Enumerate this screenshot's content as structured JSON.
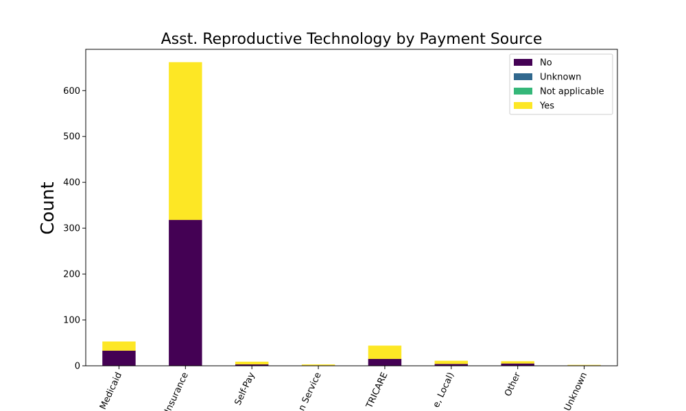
{
  "chart_data": {
    "type": "bar",
    "stacked": true,
    "title": "Asst. Reproductive Technology by Payment Source",
    "xlabel": "",
    "ylabel": "Count",
    "ylim": [
      0,
      690
    ],
    "yticks": [
      0,
      100,
      200,
      300,
      400,
      500,
      600
    ],
    "categories": [
      "Medicaid",
      "Insurance",
      "Self-Pay",
      "n Service",
      "TRICARE",
      "e, Local)",
      "Other",
      "Unknown"
    ],
    "series": [
      {
        "name": "No",
        "color": "#440154",
        "values": [
          33,
          318,
          3,
          1,
          15,
          4,
          5,
          1
        ]
      },
      {
        "name": "Unknown",
        "color": "#31688e",
        "values": [
          0,
          0,
          0,
          0,
          0,
          0,
          0,
          0
        ]
      },
      {
        "name": "Not applicable",
        "color": "#35b779",
        "values": [
          0,
          0,
          0,
          0,
          0,
          0,
          0,
          0
        ]
      },
      {
        "name": "Yes",
        "color": "#fde725",
        "values": [
          20,
          344,
          6,
          2,
          29,
          7,
          5,
          1
        ]
      }
    ],
    "legend_position": "top-right",
    "grid": false
  }
}
